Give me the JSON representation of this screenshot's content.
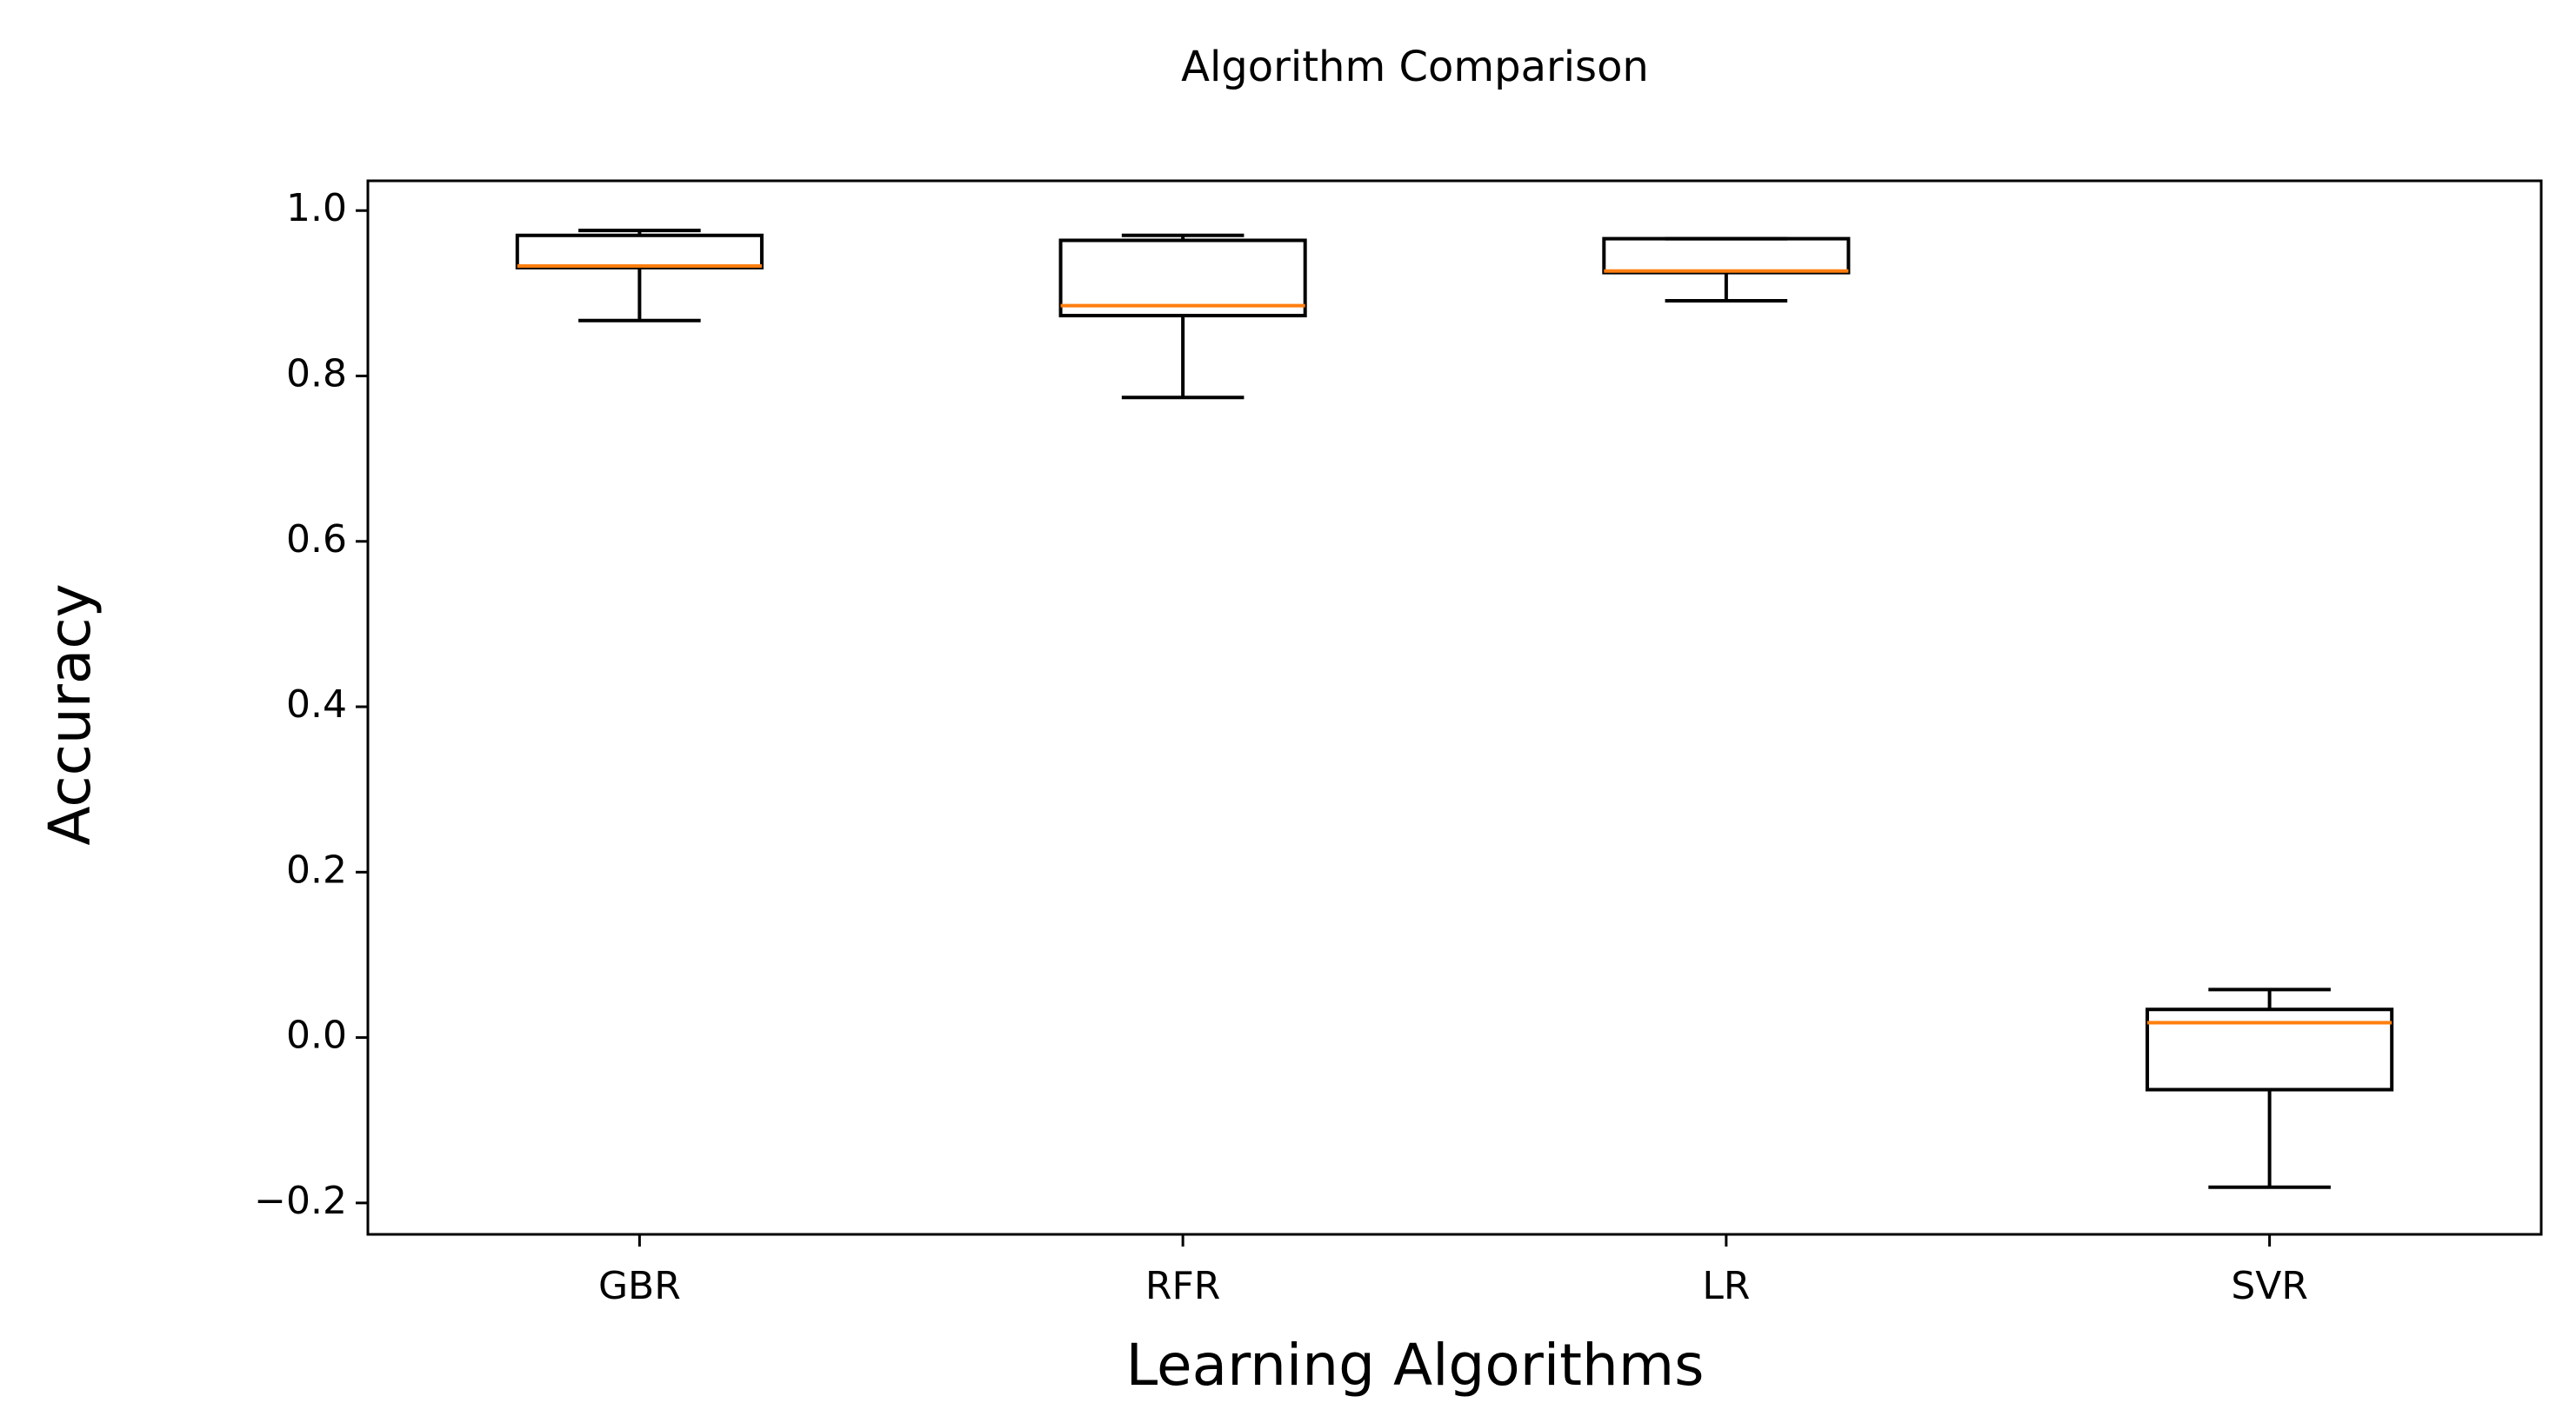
{
  "chart_data": {
    "type": "box",
    "title": "Algorithm Comparison",
    "x_label": "Learning Algorithms",
    "y_label": "Accuracy",
    "categories": [
      "GBR",
      "RFR",
      "LR",
      "SVR"
    ],
    "min": [
      0.867,
      0.774,
      0.891,
      -0.181
    ],
    "q1": [
      0.931,
      0.873,
      0.925,
      -0.063
    ],
    "median": [
      0.933,
      0.885,
      0.927,
      0.018
    ],
    "q3": [
      0.97,
      0.964,
      0.966,
      0.034
    ],
    "max": [
      0.976,
      0.97,
      0.966,
      0.058
    ],
    "box_color": "#000000",
    "median_color": "#ff7f0e",
    "ylim": [
      -0.238,
      1.036
    ],
    "yticks": [
      {
        "value": -0.2,
        "label": "−0.2"
      },
      {
        "value": 0,
        "label": "0.0"
      },
      0.2,
      0.4,
      0.6,
      0.8,
      {
        "value": 1,
        "label": "1.0"
      }
    ],
    "grid": false
  }
}
